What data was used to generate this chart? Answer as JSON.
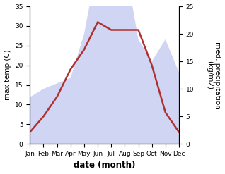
{
  "months": [
    "Jan",
    "Feb",
    "Mar",
    "Apr",
    "May",
    "Jun",
    "Jul",
    "Aug",
    "Sep",
    "Oct",
    "Nov",
    "Dec"
  ],
  "temperature": [
    3,
    7,
    12,
    19,
    24,
    31,
    29,
    29,
    29,
    20,
    8,
    3
  ],
  "precipitation": [
    8.5,
    10,
    11,
    12,
    20,
    33,
    28,
    33,
    19,
    15,
    19,
    13
  ],
  "temp_ylim": [
    0,
    35
  ],
  "precip_ylim": [
    0,
    25
  ],
  "temp_yticks": [
    0,
    5,
    10,
    15,
    20,
    25,
    30,
    35
  ],
  "precip_yticks": [
    0,
    5,
    10,
    15,
    20,
    25
  ],
  "scale_factor": 1.4,
  "fill_color": "#c0c8f0",
  "fill_alpha": 0.75,
  "line_color": "#b03030",
  "line_width": 1.8,
  "xlabel": "date (month)",
  "ylabel_left": "max temp (C)",
  "ylabel_right": "med. precipitation\n(kg/m2)",
  "background_color": "#ffffff",
  "label_fontsize": 7.5,
  "tick_fontsize": 6.5
}
